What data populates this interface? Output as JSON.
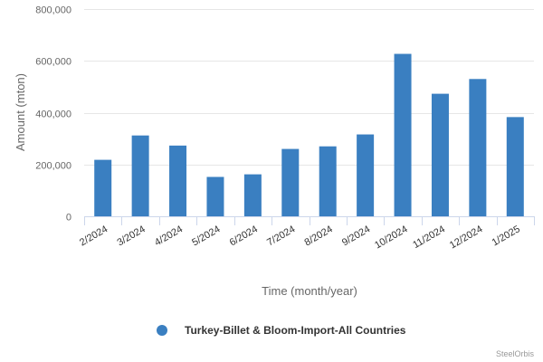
{
  "chart_data": {
    "type": "bar",
    "categories": [
      "2/2024",
      "3/2024",
      "4/2024",
      "5/2024",
      "6/2024",
      "7/2024",
      "8/2024",
      "9/2024",
      "10/2024",
      "11/2024",
      "12/2024",
      "1/2025"
    ],
    "series": [
      {
        "name": "Turkey-Billet & Bloom-Import-All Countries",
        "color": "#3a7fc1",
        "values": [
          218000,
          312000,
          273000,
          152000,
          162000,
          260000,
          270000,
          316000,
          627000,
          473000,
          530000,
          383000
        ]
      }
    ],
    "xlabel": "Time (month/year)",
    "ylabel": "Amount (mton)",
    "ylim": [
      0,
      800000
    ],
    "yticks": [
      0,
      200000,
      400000,
      600000,
      800000
    ],
    "ytick_labels": [
      "0",
      "200,000",
      "400,000",
      "600,000",
      "800,000"
    ],
    "grid": true,
    "legend_position": "bottom"
  },
  "credit": "SteelOrbis"
}
